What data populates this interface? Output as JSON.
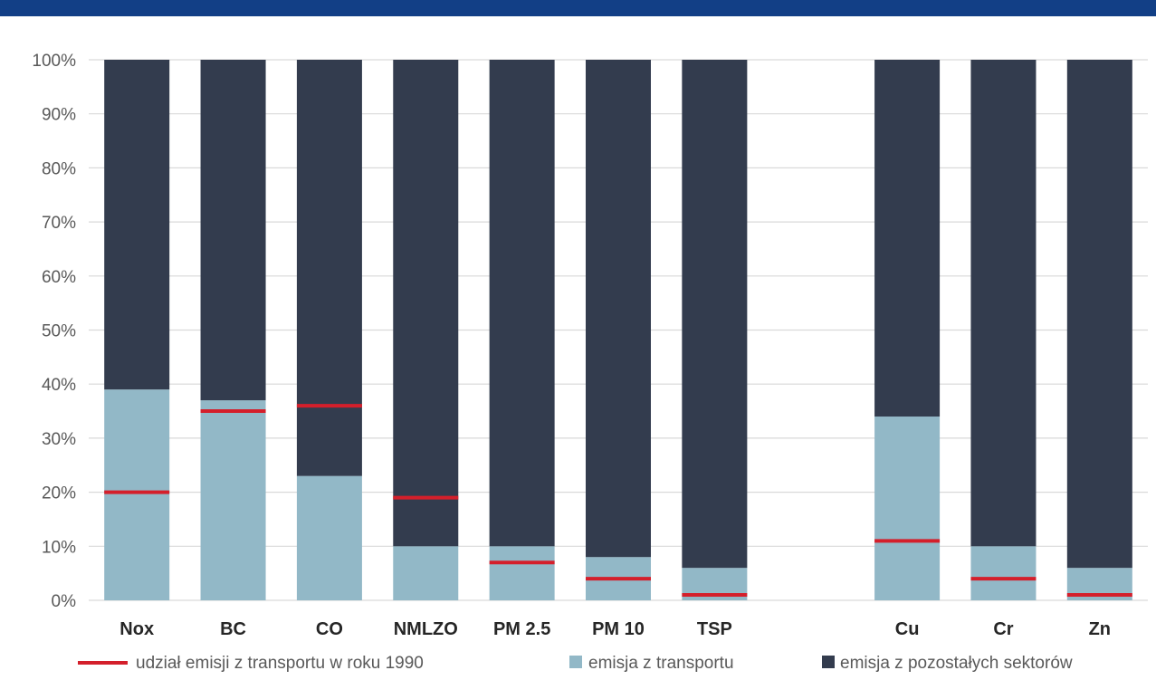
{
  "header": {
    "text": ""
  },
  "colors": {
    "transport": "#92b8c7",
    "other": "#333c4e",
    "line1990": "#d41f2b",
    "grid": "#d9d9d9"
  },
  "chart_data": {
    "type": "bar",
    "stacked": true,
    "categories": [
      "Nox",
      "BC",
      "CO",
      "NMLZO",
      "PM 2.5",
      "PM 10",
      "TSP",
      "",
      "Cu",
      "Cr",
      "Zn"
    ],
    "series": [
      {
        "name": "emisja z transportu",
        "values": [
          39,
          37,
          23,
          10,
          10,
          8,
          6,
          null,
          34,
          10,
          6
        ]
      },
      {
        "name": "emisja z pozostałych sektorów",
        "values": [
          61,
          63,
          77,
          90,
          90,
          92,
          94,
          null,
          66,
          90,
          94
        ]
      }
    ],
    "markers": {
      "name": "udział emisji z transportu w roku 1990",
      "values": [
        20,
        35,
        36,
        19,
        7,
        4,
        1,
        null,
        11,
        4,
        1
      ]
    },
    "yticks": [
      "0%",
      "10%",
      "20%",
      "30%",
      "40%",
      "50%",
      "60%",
      "70%",
      "80%",
      "90%",
      "100%"
    ],
    "ylim": [
      0,
      100
    ],
    "grid": true,
    "legend": {
      "placement": "bottom",
      "items": [
        {
          "label": "udział emisji z transportu w roku 1990",
          "kind": "line"
        },
        {
          "label": "emisja z transportu",
          "kind": "square-transport"
        },
        {
          "label": "emisja z pozostałych sektorów",
          "kind": "square-other"
        }
      ]
    }
  }
}
